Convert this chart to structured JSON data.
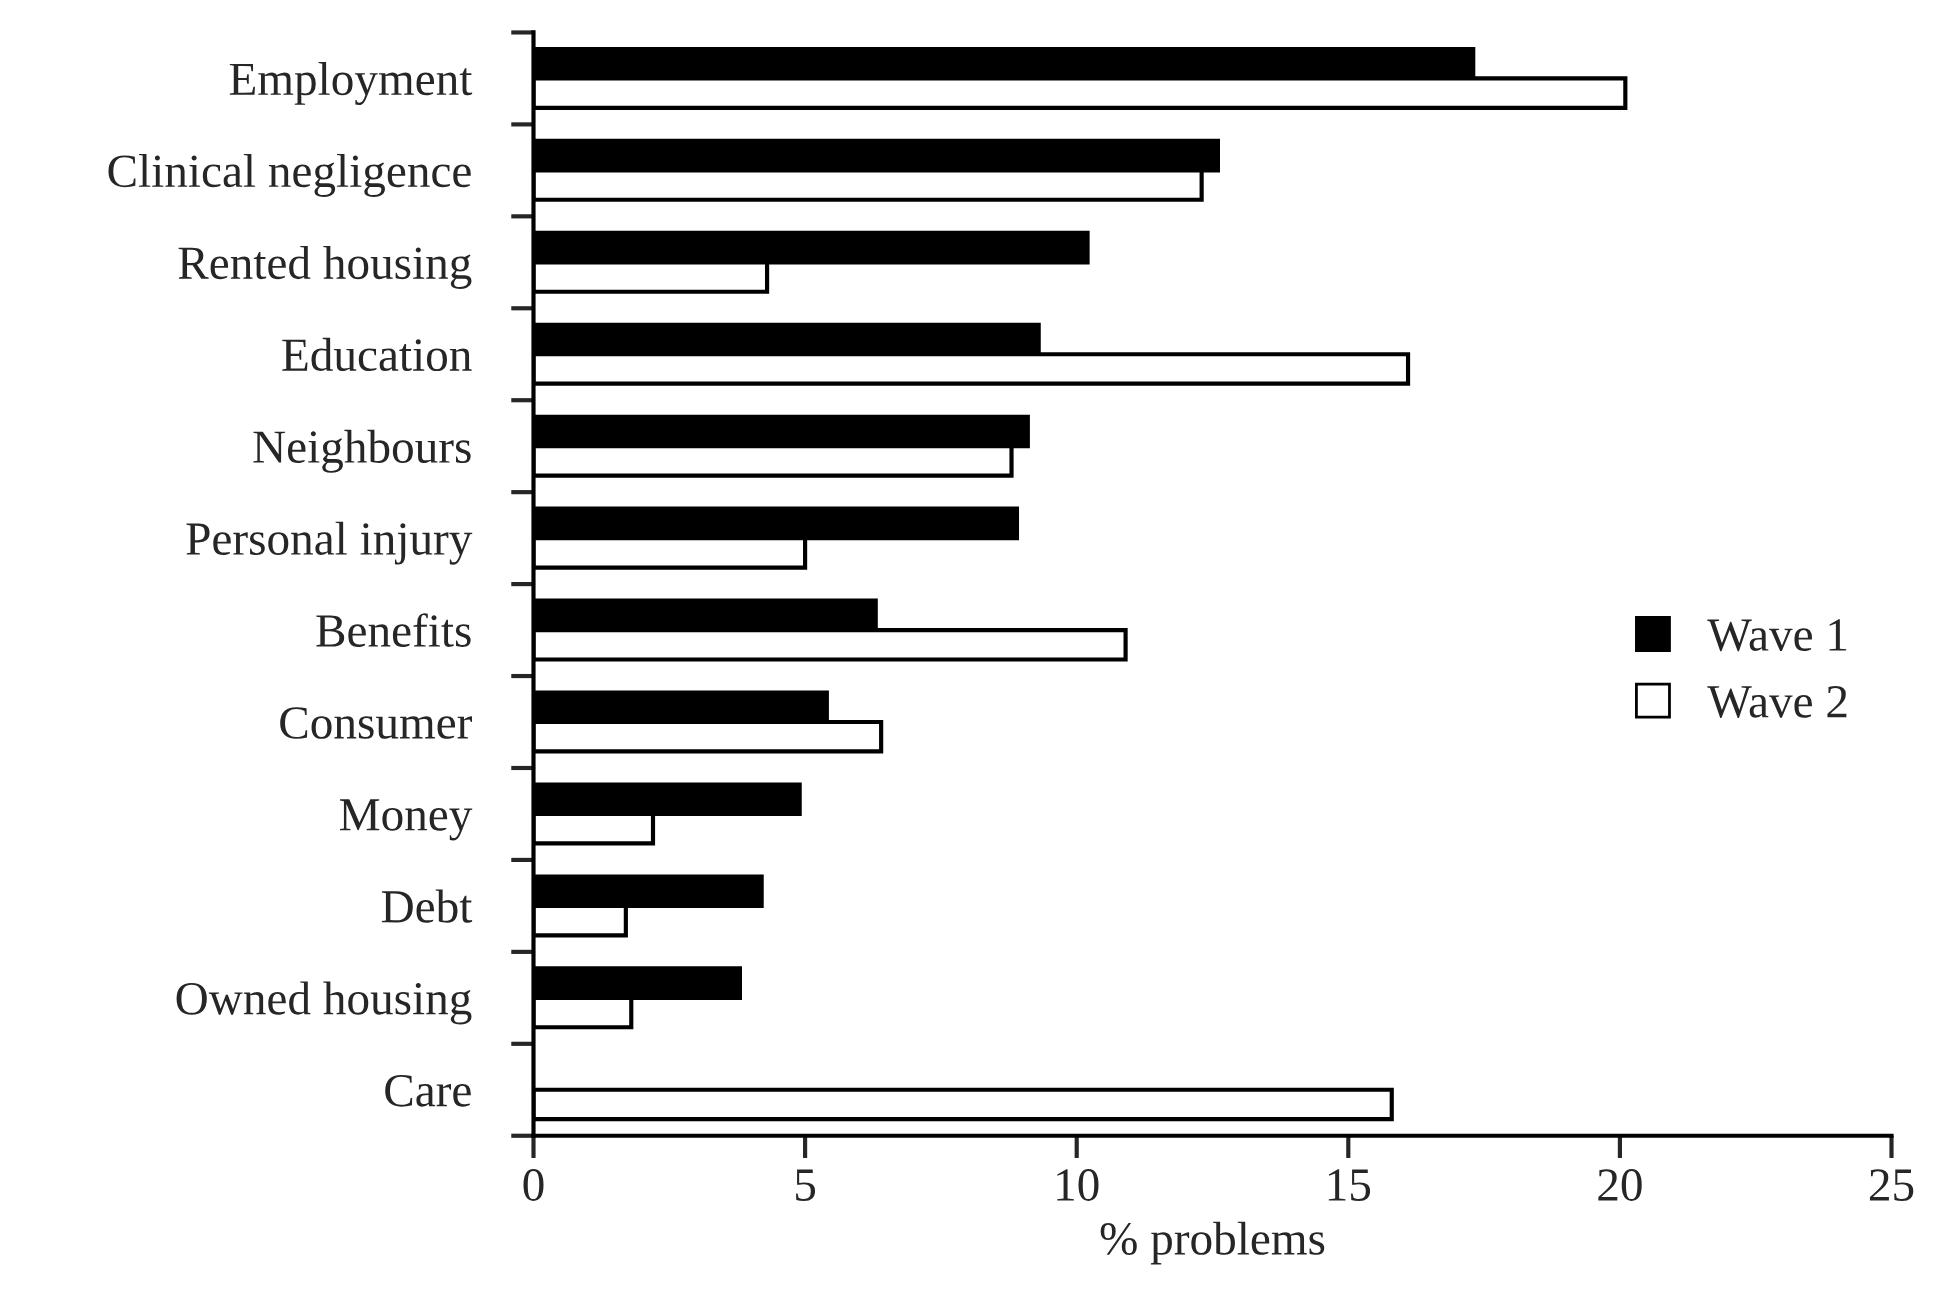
{
  "chart_data": {
    "type": "bar",
    "orientation": "horizontal",
    "xlabel": "% problems",
    "categories": [
      "Employment",
      "Clinical negligence",
      "Rented housing",
      "Education",
      "Neighbours",
      "Personal injury",
      "Benefits",
      "Consumer",
      "Money",
      "Debt",
      "Owned housing",
      "Care"
    ],
    "series": [
      {
        "name": "Wave 1",
        "color": "#000000",
        "values": [
          17.3,
          12.6,
          10.2,
          9.3,
          9.1,
          8.9,
          6.3,
          5.4,
          4.9,
          4.2,
          3.8,
          null
        ]
      },
      {
        "name": "Wave 2",
        "color": "#ffffff",
        "values": [
          20.1,
          12.3,
          4.3,
          16.1,
          8.8,
          5.0,
          10.9,
          6.4,
          2.2,
          1.7,
          1.8,
          15.8
        ]
      }
    ],
    "xlim": [
      0,
      25
    ],
    "xticks": [
      0,
      5,
      10,
      15,
      20,
      25
    ],
    "grid": false,
    "legend": "right"
  }
}
